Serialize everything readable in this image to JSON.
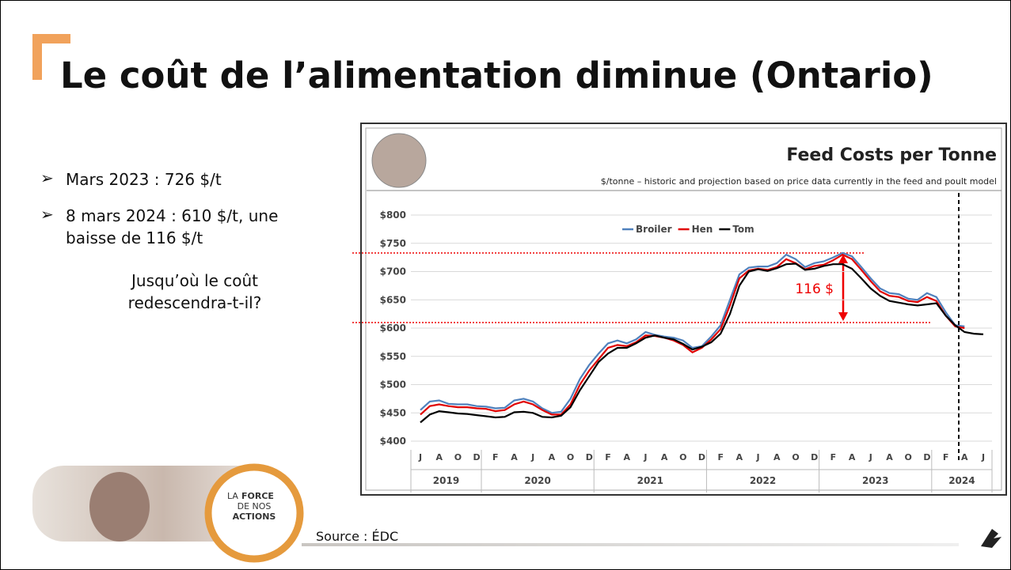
{
  "title": "Le coût de l’alimentation diminue (Ontario)",
  "bullets": [
    "Mars 2023 : 726 $/t",
    "8 mars 2024 : 610 $/t, une baisse de 116 $/t"
  ],
  "note": "Jusqu’où le coût redescendra-t-il?",
  "source": "Source : ÉDC",
  "logo_text": [
    "LA",
    "FORCE",
    "DE NOS",
    "ACTIONS"
  ],
  "chart_data": {
    "type": "line",
    "title": "Feed Costs per Tonne",
    "subtitle": "$/tonne – historic and projection based on price data currently in the feed and poult model",
    "annotation": "116 $",
    "categories": [
      "J",
      null,
      "A",
      null,
      "O",
      null,
      "D",
      null,
      "F",
      null,
      "A",
      null,
      "J",
      null,
      "A",
      null,
      "O",
      null,
      "D",
      null,
      "F",
      null,
      "A",
      null,
      "J",
      null,
      "A",
      null,
      "O",
      null,
      "D",
      null,
      "F",
      null,
      "A",
      null,
      "J",
      null,
      "A",
      null,
      "O",
      null,
      "D",
      null,
      "F",
      null,
      "A",
      null,
      "J",
      null,
      "A",
      null,
      "O",
      null,
      "D",
      null,
      "F",
      null,
      "A",
      null,
      "J"
    ],
    "years": [
      "2019",
      "2020",
      "2021",
      "2022",
      "2023",
      "2024"
    ],
    "series": [
      {
        "name": "Broiler",
        "color": "#4f81bd",
        "values": [
          455,
          470,
          472,
          466,
          465,
          465,
          462,
          461,
          458,
          459,
          472,
          475,
          470,
          458,
          450,
          452,
          475,
          510,
          535,
          555,
          573,
          578,
          573,
          580,
          593,
          588,
          585,
          583,
          578,
          565,
          568,
          585,
          605,
          650,
          695,
          707,
          709,
          709,
          715,
          730,
          722,
          708,
          715,
          718,
          725,
          733,
          727,
          708,
          688,
          670,
          662,
          660,
          652,
          650,
          662,
          655,
          628,
          605,
          603,
          null,
          null
        ]
      },
      {
        "name": "Hen",
        "color": "#e00000",
        "values": [
          447,
          462,
          465,
          462,
          460,
          460,
          458,
          457,
          453,
          455,
          465,
          470,
          465,
          455,
          447,
          447,
          465,
          500,
          525,
          545,
          565,
          570,
          568,
          575,
          587,
          586,
          583,
          578,
          570,
          557,
          565,
          580,
          598,
          640,
          688,
          702,
          705,
          703,
          708,
          722,
          715,
          704,
          710,
          712,
          720,
          730,
          722,
          703,
          683,
          665,
          657,
          655,
          648,
          646,
          655,
          648,
          622,
          603,
          600,
          null,
          null
        ]
      },
      {
        "name": "Tom",
        "color": "#000000",
        "values": [
          433,
          447,
          453,
          451,
          449,
          448,
          446,
          444,
          442,
          443,
          451,
          452,
          450,
          443,
          442,
          445,
          460,
          490,
          515,
          540,
          555,
          565,
          565,
          573,
          583,
          587,
          583,
          580,
          572,
          562,
          567,
          575,
          590,
          625,
          675,
          700,
          704,
          701,
          706,
          713,
          714,
          703,
          705,
          710,
          713,
          713,
          705,
          688,
          670,
          657,
          648,
          645,
          642,
          640,
          642,
          644,
          622,
          605,
          593,
          590,
          589
        ]
      }
    ],
    "ylim": [
      400,
      800
    ],
    "yticks": [
      {
        "value": 400,
        "label": "$400"
      },
      {
        "value": 450,
        "label": "$450"
      },
      {
        "value": 500,
        "label": "$500"
      },
      {
        "value": 550,
        "label": "$550"
      },
      {
        "value": 600,
        "label": "$600"
      },
      {
        "value": 650,
        "label": "$650"
      },
      {
        "value": 700,
        "label": "$700"
      },
      {
        "value": 750,
        "label": "$750"
      },
      {
        "value": 800,
        "label": "$800"
      }
    ],
    "grid": true
  }
}
